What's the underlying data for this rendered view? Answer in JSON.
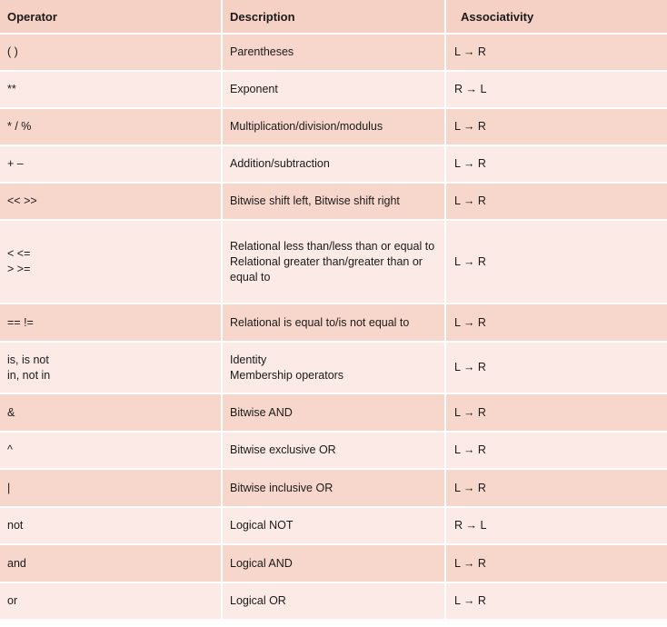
{
  "table": {
    "headers": [
      "Operator",
      "Description",
      "Associativity"
    ],
    "rows": [
      {
        "operator": "( )",
        "description": "Parentheses",
        "associativity": "L → R"
      },
      {
        "operator": "**",
        "description": "Exponent",
        "associativity": "R → L"
      },
      {
        "operator": "*  /  %",
        "description": "Multiplication/division/modulus",
        "associativity": "L → R"
      },
      {
        "operator": "+  –",
        "description": "Addition/subtraction",
        "associativity": "L → R"
      },
      {
        "operator": "<<  >>",
        "description": "Bitwise shift left, Bitwise shift right",
        "associativity": "L → R"
      },
      {
        "operator": "<  <=\n>  >=",
        "description": "Relational less than/less than or equal to\nRelational greater than/greater  than or equal to",
        "associativity": "L → R"
      },
      {
        "operator": "==  !=",
        "description": "Relational is equal to/is not equal to",
        "associativity": "L → R"
      },
      {
        "operator": "is,  is not\nin, not in",
        "description": "Identity\nMembership operators",
        "associativity": "L → R"
      },
      {
        "operator": "&",
        "description": "Bitwise AND",
        "associativity": "L → R"
      },
      {
        "operator": "^",
        "description": "Bitwise exclusive OR",
        "associativity": "L → R"
      },
      {
        "operator": "|",
        "description": "Bitwise inclusive OR",
        "associativity": "L → R"
      },
      {
        "operator": "not",
        "description": "Logical NOT",
        "associativity": "R → L"
      },
      {
        "operator": "and",
        "description": "Logical AND",
        "associativity": "L → R"
      },
      {
        "operator": "or",
        "description": "Logical OR",
        "associativity": "L → R"
      }
    ]
  }
}
